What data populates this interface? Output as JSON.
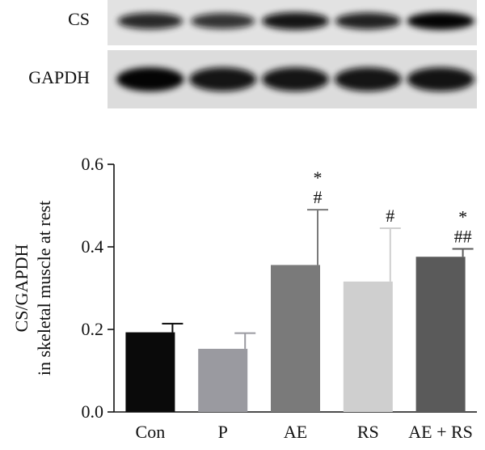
{
  "blot": {
    "rows": [
      {
        "label": "CS",
        "band_intensity": [
          0.72,
          0.6,
          0.92,
          0.78,
          0.95
        ]
      },
      {
        "label": "GAPDH",
        "band_intensity": [
          0.95,
          0.92,
          0.9,
          0.9,
          0.93
        ]
      }
    ]
  },
  "chart_data": {
    "type": "bar",
    "categories": [
      "Con",
      "P",
      "AE",
      "RS",
      "AE + RS"
    ],
    "values": [
      0.193,
      0.153,
      0.356,
      0.316,
      0.376
    ],
    "errors": [
      0.021,
      0.038,
      0.134,
      0.129,
      0.019
    ],
    "bar_colors": [
      "#0a0a0a",
      "#9a9aa0",
      "#7a7a7a",
      "#cfcfcf",
      "#5a5a5a"
    ],
    "annotations": [
      {
        "category": "AE",
        "lines": [
          "*",
          "#"
        ]
      },
      {
        "category": "RS",
        "lines": [
          "#"
        ]
      },
      {
        "category": "AE + RS",
        "lines": [
          "*",
          "##"
        ]
      }
    ],
    "ylabel_lines": [
      "CS/GAPDH",
      "in skeletal muscle at rest"
    ],
    "xlabel": "",
    "ylim": [
      0.0,
      0.6
    ],
    "yticks": [
      0.0,
      0.2,
      0.4,
      0.6
    ],
    "ytick_labels": [
      "0.0",
      "0.2",
      "0.4",
      "0.6"
    ],
    "grid": false
  }
}
